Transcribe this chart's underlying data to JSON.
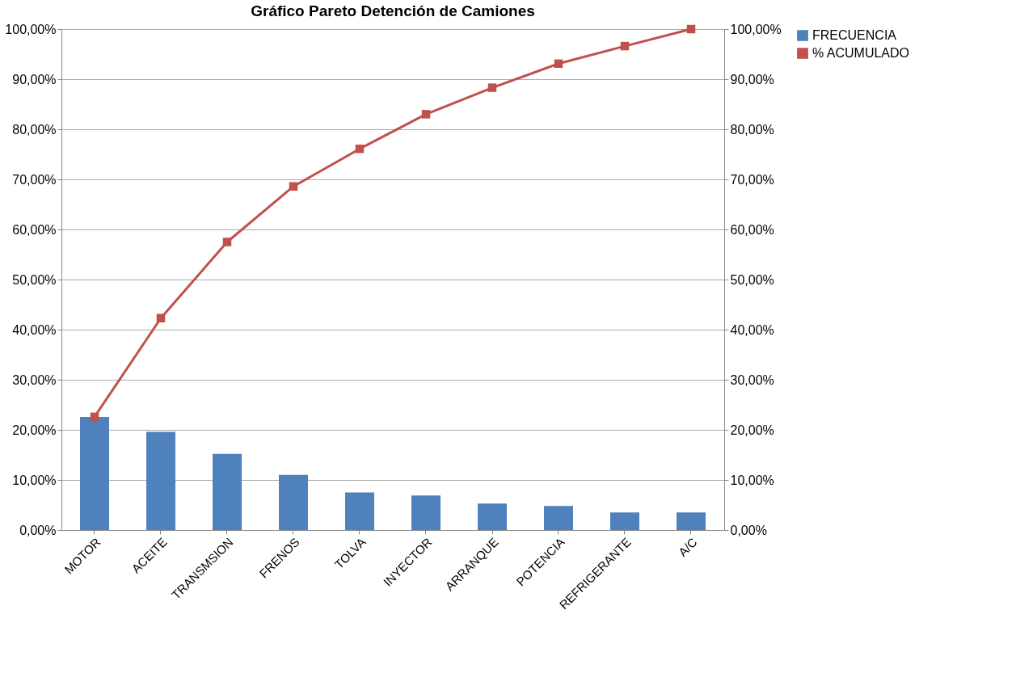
{
  "chart_data": {
    "type": "bar",
    "title": "Gráfico Pareto Detención de Camiones",
    "categories": [
      "MOTOR",
      "ACEITE",
      "TRANSMSION",
      "FRENOS",
      "TOLVA",
      "INYECTOR",
      "ARRANQUE",
      "POTENCIA",
      "REFRIGERANTE",
      "A/C"
    ],
    "series": [
      {
        "name": "FRECUENCIA",
        "color": "#4f81bd",
        "values": [
          22.6,
          19.6,
          15.2,
          11.0,
          7.5,
          6.9,
          5.3,
          4.8,
          3.5,
          3.5
        ]
      },
      {
        "name": "% ACUMULADO",
        "type": "line",
        "axis": "y2",
        "color": "#c0504d",
        "values": [
          22.6,
          42.3,
          57.5,
          68.6,
          76.1,
          83.0,
          88.3,
          93.1,
          96.6,
          100.0
        ]
      }
    ],
    "ylim": [
      0,
      100
    ],
    "yticks": [
      {
        "value": 0,
        "label": "0,00%"
      },
      {
        "value": 10,
        "label": "10,00%"
      },
      {
        "value": 20,
        "label": "20,00%"
      },
      {
        "value": 30,
        "label": "30,00%"
      },
      {
        "value": 40,
        "label": "40,00%"
      },
      {
        "value": 50,
        "label": "50,00%"
      },
      {
        "value": 60,
        "label": "60,00%"
      },
      {
        "value": 70,
        "label": "70,00%"
      },
      {
        "value": 80,
        "label": "80,00%"
      },
      {
        "value": 90,
        "label": "90,00%"
      },
      {
        "value": 100,
        "label": "100,00%"
      }
    ],
    "y2lim": [
      0,
      100
    ],
    "y2ticks": [
      {
        "value": 0,
        "label": "0,00%"
      },
      {
        "value": 10,
        "label": "10,00%"
      },
      {
        "value": 20,
        "label": "20,00%"
      },
      {
        "value": 30,
        "label": "30,00%"
      },
      {
        "value": 40,
        "label": "40,00%"
      },
      {
        "value": 50,
        "label": "50,00%"
      },
      {
        "value": 60,
        "label": "60,00%"
      },
      {
        "value": 70,
        "label": "70,00%"
      },
      {
        "value": 80,
        "label": "80,00%"
      },
      {
        "value": 90,
        "label": "90,00%"
      },
      {
        "value": 100,
        "label": "100,00%"
      }
    ],
    "grid": "y",
    "legend": "right",
    "marker": "square",
    "line_style": "solid"
  }
}
